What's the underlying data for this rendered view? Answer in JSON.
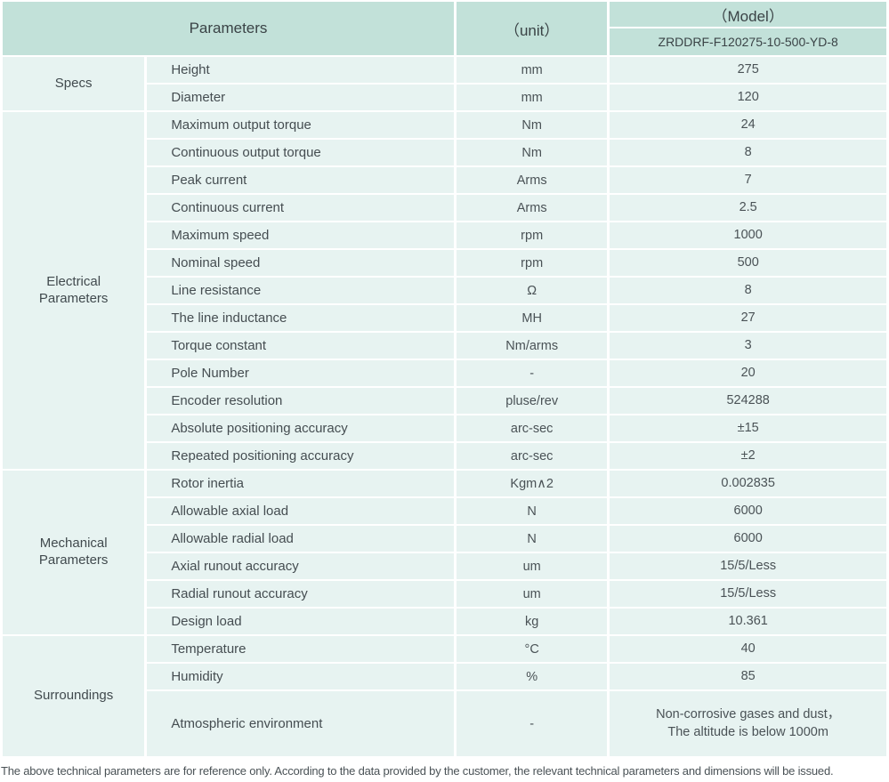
{
  "header": {
    "parameters_label": "Parameters",
    "unit_label": "（unit）",
    "model_label": "（Model）",
    "model_value": "ZRDDRF-F120275-10-500-YD-8"
  },
  "colors": {
    "header_bg": "#c2e1d9",
    "cell_bg": "#e7f3f1",
    "border": "#ffffff",
    "text": "#454d51"
  },
  "sections": [
    {
      "group": "Specs",
      "rows": [
        {
          "label": "Height",
          "unit": "mm",
          "value": "275"
        },
        {
          "label": "Diameter",
          "unit": "mm",
          "value": "120"
        }
      ]
    },
    {
      "group": "Electrical Parameters",
      "rows": [
        {
          "label": "Maximum output torque",
          "unit": "Nm",
          "value": "24"
        },
        {
          "label": "Continuous output torque",
          "unit": "Nm",
          "value": "8"
        },
        {
          "label": "Peak current",
          "unit": "Arms",
          "value": "7"
        },
        {
          "label": "Continuous current",
          "unit": "Arms",
          "value": "2.5"
        },
        {
          "label": "Maximum speed",
          "unit": "rpm",
          "value": "1000"
        },
        {
          "label": "Nominal speed",
          "unit": "rpm",
          "value": "500"
        },
        {
          "label": "Line resistance",
          "unit": "Ω",
          "value": "8"
        },
        {
          "label": "The line inductance",
          "unit": "MH",
          "value": "27"
        },
        {
          "label": "Torque constant",
          "unit": "Nm/arms",
          "value": "3"
        },
        {
          "label": "Pole Number",
          "unit": "-",
          "value": "20"
        },
        {
          "label": "Encoder resolution",
          "unit": "pluse/rev",
          "value": "524288"
        },
        {
          "label": "Absolute positioning accuracy",
          "unit": "arc-sec",
          "value": "±15"
        },
        {
          "label": "Repeated positioning accuracy",
          "unit": "arc-sec",
          "value": "±2"
        }
      ]
    },
    {
      "group": "Mechanical Parameters",
      "rows": [
        {
          "label": "Rotor inertia",
          "unit": "Kgm∧2",
          "value": "0.002835"
        },
        {
          "label": "Allowable axial load",
          "unit": "N",
          "value": "6000"
        },
        {
          "label": "Allowable radial load",
          "unit": "N",
          "value": "6000"
        },
        {
          "label": "Axial runout accuracy",
          "unit": "um",
          "value": "15/5/Less"
        },
        {
          "label": "Radial runout accuracy",
          "unit": "um",
          "value": "15/5/Less"
        },
        {
          "label": "Design load",
          "unit": "kg",
          "value": "10.361"
        }
      ]
    },
    {
      "group": "Surroundings",
      "rows": [
        {
          "label": "Temperature",
          "unit": "°C",
          "value": "40"
        },
        {
          "label": "Humidity",
          "unit": "%",
          "value": "85"
        },
        {
          "label": "Atmospheric environment",
          "unit": "-",
          "value": "Non-corrosive gases and dust，\nThe altitude is below 1000m"
        }
      ]
    }
  ],
  "footer": {
    "note": "The above technical parameters are for reference only. According to the data provided by the customer, the relevant technical parameters and dimensions will be issued."
  }
}
